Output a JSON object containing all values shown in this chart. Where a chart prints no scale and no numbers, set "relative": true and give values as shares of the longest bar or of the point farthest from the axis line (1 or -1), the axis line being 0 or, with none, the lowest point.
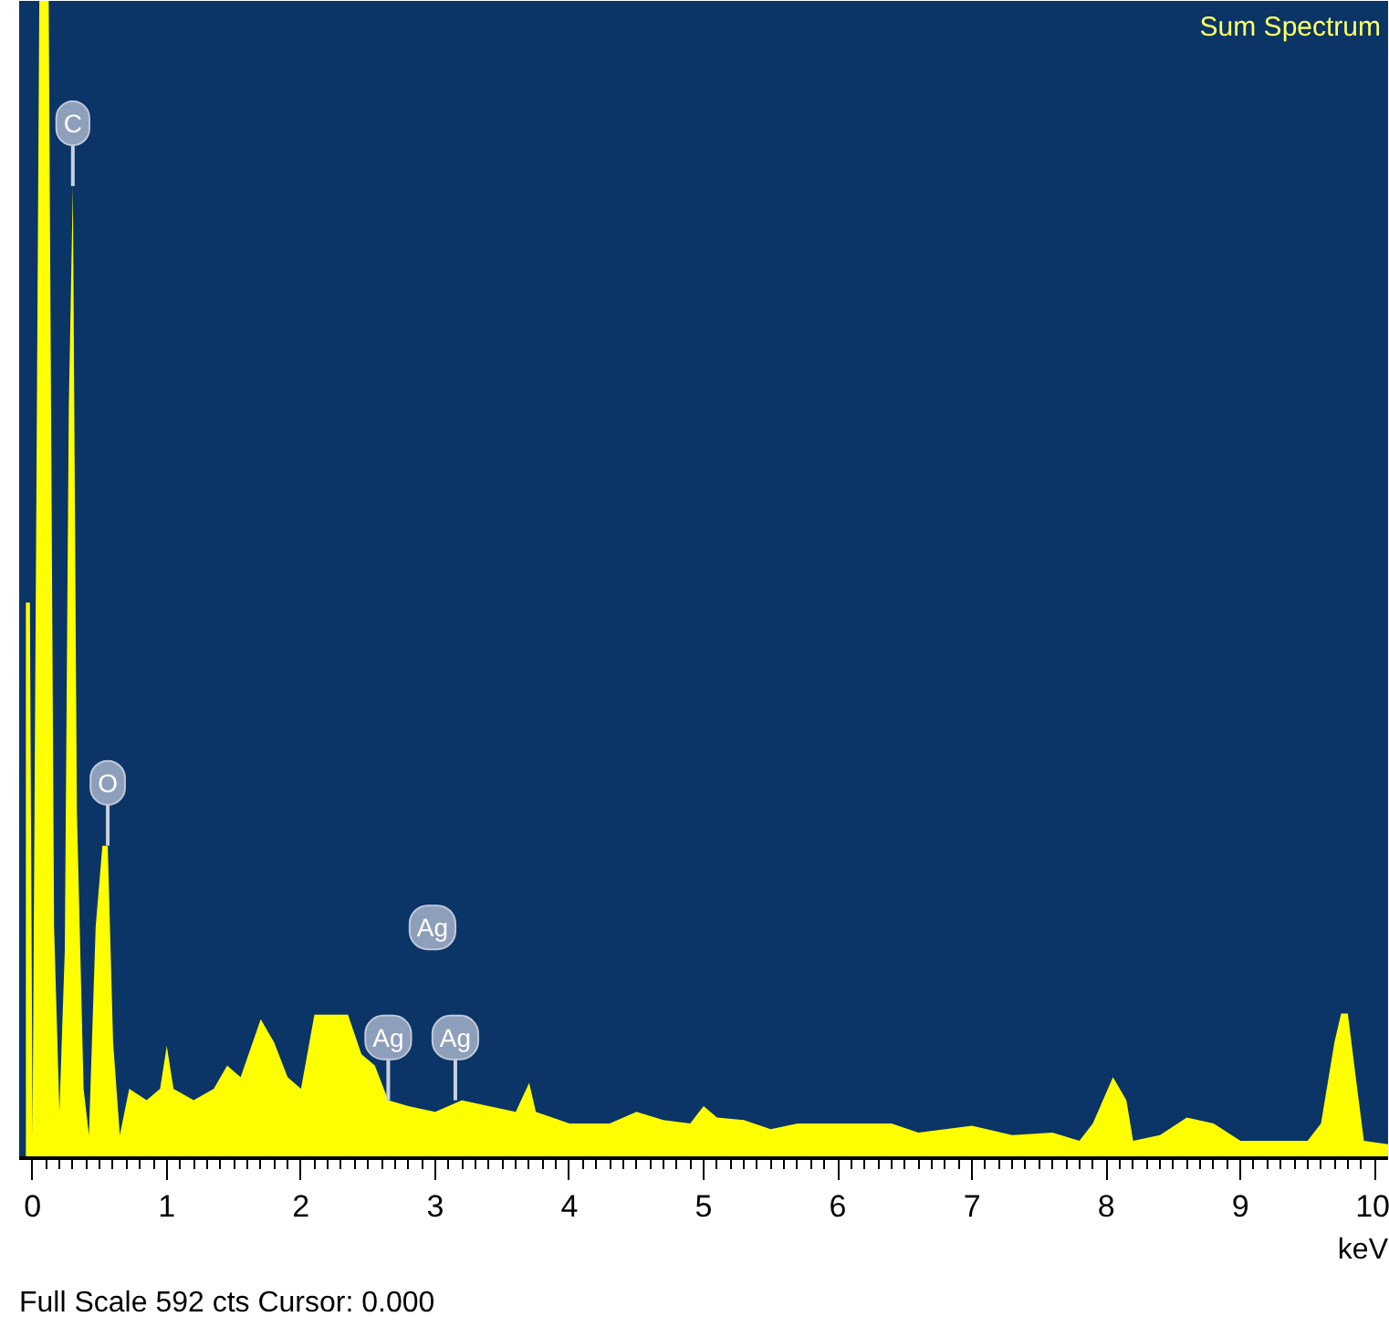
{
  "chart_data": {
    "type": "area",
    "title": "Sum Spectrum",
    "xlabel": "keV",
    "relative": true,
    "grid": false,
    "color": "#ffff00",
    "x": [
      -0.05,
      -0.02,
      0.0,
      0.05,
      0.12,
      0.16,
      0.2,
      0.24,
      0.27,
      0.3,
      0.33,
      0.38,
      0.42,
      0.47,
      0.52,
      0.56,
      0.6,
      0.65,
      0.72,
      0.85,
      0.95,
      1.0,
      1.05,
      1.2,
      1.35,
      1.45,
      1.55,
      1.7,
      1.8,
      1.9,
      2.0,
      2.1,
      2.35,
      2.45,
      2.55,
      2.65,
      2.8,
      3.0,
      3.2,
      3.4,
      3.6,
      3.7,
      3.75,
      4.0,
      4.3,
      4.5,
      4.7,
      4.9,
      5.0,
      5.1,
      5.3,
      5.5,
      5.7,
      6.0,
      6.4,
      6.6,
      7.0,
      7.3,
      7.6,
      7.8,
      7.9,
      8.05,
      8.15,
      8.2,
      8.4,
      8.6,
      8.8,
      9.0,
      9.3,
      9.5,
      9.6,
      9.7,
      9.75,
      9.8,
      9.87,
      9.92,
      10.1
    ],
    "values": [
      0.48,
      0.48,
      0.02,
      1,
      1,
      0.2,
      0.04,
      0.18,
      0.65,
      0.84,
      0.3,
      0.06,
      0.02,
      0.2,
      0.27,
      0.27,
      0.1,
      0.02,
      0.06,
      0.05,
      0.06,
      0.097,
      0.06,
      0.05,
      0.06,
      0.08,
      0.07,
      0.12,
      0.1,
      0.07,
      0.06,
      0.124,
      0.124,
      0.09,
      0.08,
      0.05,
      0.045,
      0.04,
      0.05,
      0.045,
      0.04,
      0.065,
      0.04,
      0.03,
      0.03,
      0.04,
      0.033,
      0.03,
      0.045,
      0.035,
      0.033,
      0.025,
      0.03,
      0.03,
      0.03,
      0.022,
      0.028,
      0.02,
      0.022,
      0.015,
      0.03,
      0.07,
      0.05,
      0.015,
      0.02,
      0.035,
      0.03,
      0.015,
      0.015,
      0.015,
      0.03,
      0.1,
      0.125,
      0.125,
      0.06,
      0.015,
      0.012
    ],
    "xlim": [
      -0.1,
      10.1
    ],
    "xticks": [
      0,
      1,
      2,
      3,
      4,
      5,
      6,
      7,
      8,
      9,
      10
    ],
    "annotations": [
      {
        "text": "C",
        "x": 0.3,
        "y": 0.84
      },
      {
        "text": "O",
        "x": 0.56,
        "y": 0.27
      },
      {
        "text": "Ag",
        "x": 2.65,
        "y": 0.05
      },
      {
        "text": "Ag",
        "x": 2.98
      },
      {
        "text": "Ag",
        "x": 3.15,
        "y": 0.05
      },
      "Full Scale 592 cts Cursor: 0.000"
    ]
  }
}
